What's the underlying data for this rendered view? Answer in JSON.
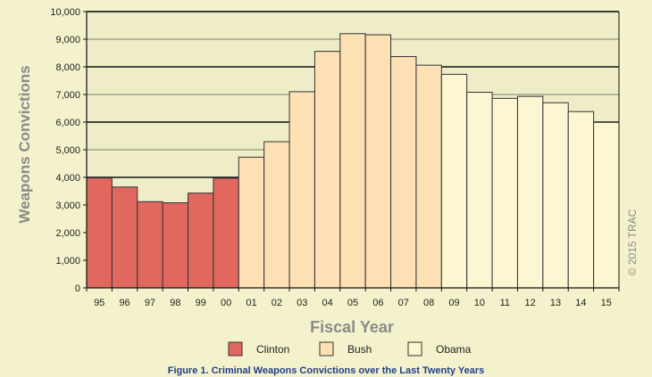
{
  "chart_data": {
    "type": "bar",
    "xlabel": "Fiscal Year",
    "ylabel": "Weapons Convictions",
    "ylim": [
      0,
      10000
    ],
    "yticks": [
      0,
      1000,
      2000,
      3000,
      4000,
      5000,
      6000,
      7000,
      8000,
      9000,
      10000
    ],
    "ytick_labels": [
      "0",
      "1,000",
      "2,000",
      "3,000",
      "4,000",
      "5,000",
      "6,000",
      "7,000",
      "8,000",
      "9,000",
      "10,000"
    ],
    "categories": [
      "95",
      "96",
      "97",
      "98",
      "99",
      "00",
      "01",
      "02",
      "03",
      "04",
      "05",
      "06",
      "07",
      "08",
      "09",
      "10",
      "11",
      "12",
      "13",
      "14",
      "15"
    ],
    "values": [
      3980,
      3650,
      3120,
      3080,
      3430,
      3970,
      4730,
      5290,
      7100,
      8560,
      9200,
      9160,
      8370,
      8060,
      7730,
      7080,
      6860,
      6930,
      6700,
      6380,
      5990
    ],
    "series_by_category": [
      "Clinton",
      "Clinton",
      "Clinton",
      "Clinton",
      "Clinton",
      "Clinton",
      "Bush",
      "Bush",
      "Bush",
      "Bush",
      "Bush",
      "Bush",
      "Bush",
      "Bush",
      "Obama",
      "Obama",
      "Obama",
      "Obama",
      "Obama",
      "Obama",
      "Obama"
    ],
    "legend": [
      {
        "name": "Clinton",
        "color": "#e0685e"
      },
      {
        "name": "Bush",
        "color": "#fde0b4"
      },
      {
        "name": "Obama",
        "color": "#fdf6d2"
      }
    ],
    "legend_position": "bottom",
    "grid": true,
    "credit": "© 2015 TRAC"
  },
  "caption": "Figure 1. Criminal Weapons Convictions over the Last Twenty Years",
  "colors": {
    "background": "#f4f2cc",
    "plot_background": "#eeedc8",
    "bar_stroke": "#333333"
  }
}
